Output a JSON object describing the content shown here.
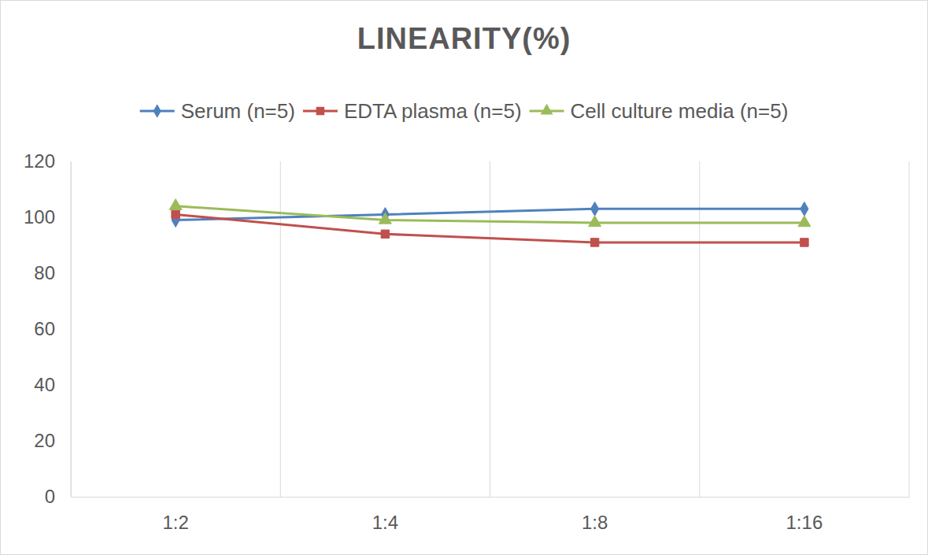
{
  "chart_data": {
    "type": "line",
    "title": "LINEARITY(%)",
    "categories": [
      "1:2",
      "1:4",
      "1:8",
      "1:16"
    ],
    "series": [
      {
        "name": "Serum (n=5)",
        "color": "#4f81bd",
        "marker": "diamond",
        "values": [
          99,
          101,
          103,
          103
        ]
      },
      {
        "name": "EDTA plasma (n=5)",
        "color": "#c0504d",
        "marker": "square",
        "values": [
          101,
          94,
          91,
          91
        ]
      },
      {
        "name": "Cell culture media (n=5)",
        "color": "#9bbb59",
        "marker": "triangle",
        "values": [
          104,
          99,
          98,
          98
        ]
      }
    ],
    "ylim": [
      0,
      120
    ],
    "yticks": [
      0,
      20,
      40,
      60,
      80,
      100,
      120
    ],
    "grid": true,
    "legend": "top"
  }
}
